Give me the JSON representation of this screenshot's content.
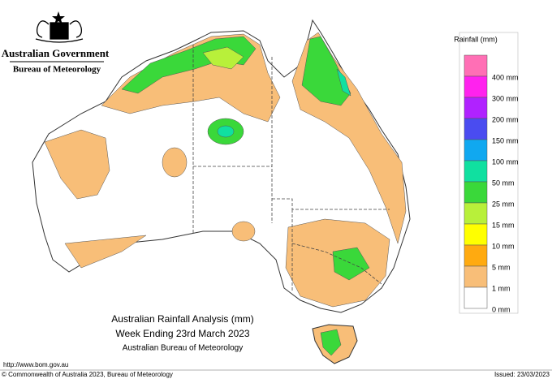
{
  "header": {
    "government": "Australian Government",
    "agency": "Bureau of Meteorology"
  },
  "legend": {
    "title": "Rainfall (mm)",
    "colors": [
      "#ff6fb5",
      "#ff22ee",
      "#b022ff",
      "#4a4cf0",
      "#10a8f0",
      "#10e0a0",
      "#3ad83a",
      "#b8f03a",
      "#ffff00",
      "#ffaa10",
      "#f8be78",
      "#ffffff"
    ],
    "labels": [
      "400 mm",
      "300 mm",
      "200 mm",
      "150 mm",
      "100 mm",
      "50 mm",
      "25 mm",
      "15 mm",
      "10 mm",
      "5 mm",
      "1 mm",
      "0 mm"
    ]
  },
  "caption": {
    "title": "Australian Rainfall Analysis (mm)",
    "period": "Week Ending 23rd March 2023",
    "source": "Australian Bureau of Meteorology"
  },
  "footer": {
    "url": "http://www.bom.gov.au",
    "copyright": "© Commonwealth of Australia 2023, Bureau of Meteorology",
    "issued": "Issued: 23/03/2023"
  }
}
